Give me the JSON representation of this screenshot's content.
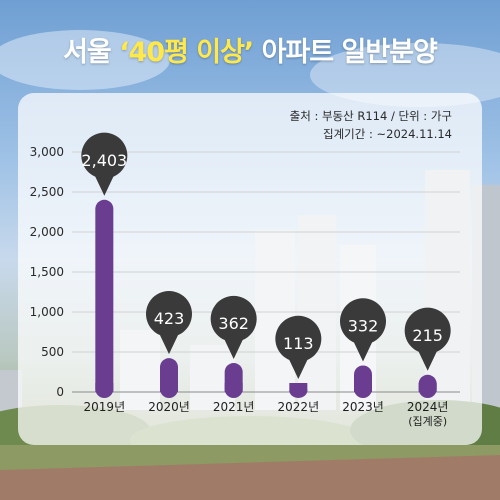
{
  "title": {
    "prefix": "서울 ",
    "highlight": "‘40평 이상’",
    "suffix": " 아파트 일반분양"
  },
  "source": "출처 : 부동산 R114 / 단위 : 가구",
  "period": "집계기간 : ~2024.11.14",
  "colors": {
    "bar": "#6a3d91",
    "bubble": "#3a3a3a",
    "title_highlight": "#ffe94a"
  },
  "chart_data": {
    "type": "bar",
    "categories": [
      "2019년",
      "2020년",
      "2021년",
      "2022년",
      "2023년",
      "2024년"
    ],
    "category_notes": [
      "",
      "",
      "",
      "",
      "",
      "(집계중)"
    ],
    "values": [
      2403,
      423,
      362,
      113,
      332,
      215
    ],
    "value_labels": [
      "2,403",
      "423",
      "362",
      "113",
      "332",
      "215"
    ],
    "yticks": [
      0,
      500,
      1000,
      1500,
      2000,
      2500,
      3000
    ],
    "ytick_labels": [
      "0",
      "500",
      "1,000",
      "1,500",
      "2,000",
      "2,500",
      "3,000"
    ],
    "ylim": [
      0,
      3000
    ],
    "grid": true
  }
}
